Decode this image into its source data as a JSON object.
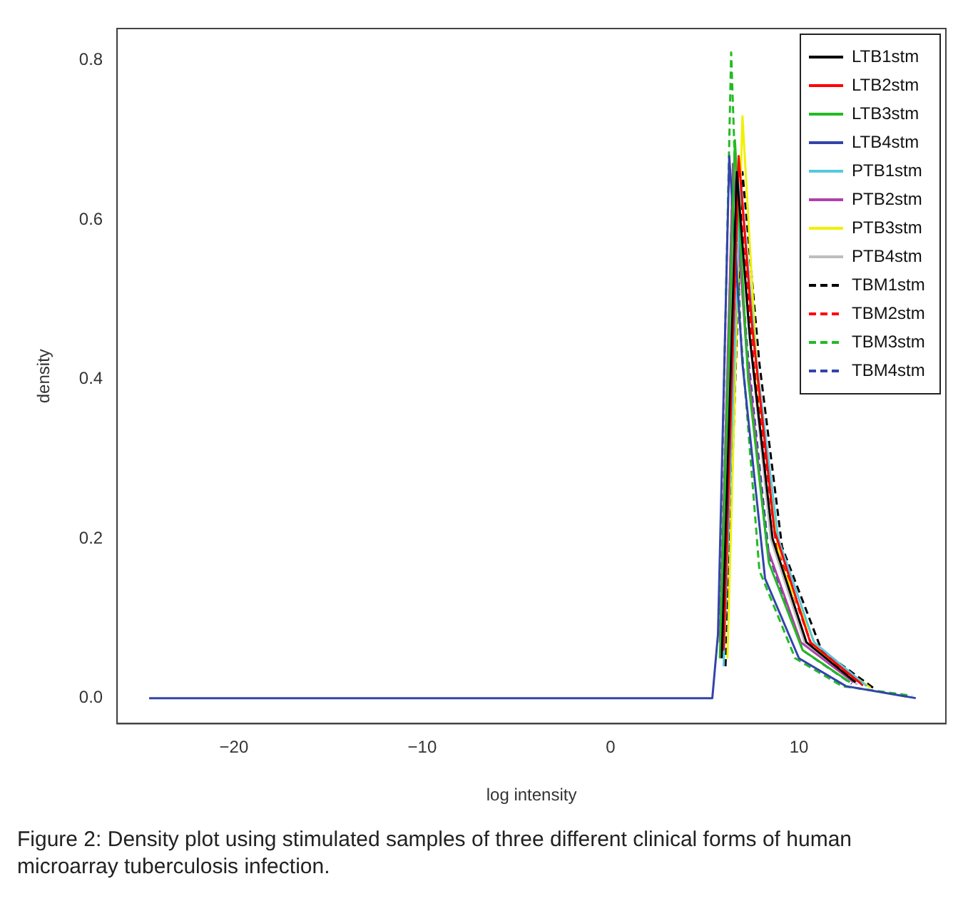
{
  "chart_data": {
    "type": "line",
    "xlabel": "log intensity",
    "ylabel": "density",
    "xlim": [
      -26.2,
      17.8
    ],
    "xticks": [
      -20,
      -10,
      0,
      10
    ],
    "ylim": [
      -0.032,
      0.84
    ],
    "yticks": [
      {
        "value": 0,
        "label": "0.0"
      },
      {
        "value": 0.2,
        "label": "0.2"
      },
      {
        "value": 0.4,
        "label": "0.4"
      },
      {
        "value": 0.6,
        "label": "0.6"
      },
      {
        "value": 0.8,
        "label": "0.8"
      }
    ],
    "grid": false,
    "legend": "top right",
    "marker": "none",
    "series": [
      {
        "name": "LTB1stm",
        "color": "#000000",
        "line_style": "solid",
        "x": [
          5.9,
          6.7,
          7.4,
          8.6,
          10.4,
          13.0
        ],
        "values": [
          0.05,
          0.66,
          0.45,
          0.2,
          0.07,
          0.02
        ]
      },
      {
        "name": "LTB2stm",
        "color": "#ff0000",
        "line_style": "solid",
        "x": [
          6.0,
          6.8,
          7.5,
          8.7,
          10.6,
          13.3
        ],
        "values": [
          0.06,
          0.68,
          0.47,
          0.21,
          0.07,
          0.018
        ]
      },
      {
        "name": "LTB3stm",
        "color": "#22bb22",
        "line_style": "solid",
        "x": [
          5.8,
          6.6,
          7.3,
          8.4,
          10.2,
          12.7
        ],
        "values": [
          0.05,
          0.7,
          0.4,
          0.17,
          0.06,
          0.02
        ]
      },
      {
        "name": "LTB4stm",
        "color": "#3344aa",
        "line_style": "solid",
        "x": [
          -24.5,
          5.4,
          5.7,
          6.3,
          7.0,
          8.2,
          10.0,
          12.5,
          16.2
        ],
        "values": [
          0,
          0,
          0.08,
          0.68,
          0.42,
          0.15,
          0.05,
          0.015,
          0
        ]
      },
      {
        "name": "PTB1stm",
        "color": "#55c8e0",
        "line_style": "solid",
        "x": [
          6.0,
          6.9,
          7.7,
          8.9,
          10.8,
          13.6
        ],
        "values": [
          0.04,
          0.65,
          0.43,
          0.2,
          0.07,
          0.015
        ]
      },
      {
        "name": "PTB2stm",
        "color": "#b040a8",
        "line_style": "solid",
        "x": [
          5.8,
          6.5,
          7.2,
          8.3,
          10.1,
          12.9
        ],
        "values": [
          0.07,
          0.67,
          0.44,
          0.19,
          0.07,
          0.02
        ]
      },
      {
        "name": "PTB3stm",
        "color": "#f0f000",
        "line_style": "solid",
        "x": [
          6.2,
          7.0,
          7.8,
          9.0,
          11.0,
          13.8
        ],
        "values": [
          0.05,
          0.73,
          0.4,
          0.17,
          0.06,
          0.013
        ]
      },
      {
        "name": "PTB4stm",
        "color": "#bebebe",
        "line_style": "solid",
        "x": [
          5.9,
          6.6,
          7.35,
          8.5,
          10.3,
          13.1
        ],
        "values": [
          0.06,
          0.68,
          0.46,
          0.2,
          0.07,
          0.017
        ]
      },
      {
        "name": "TBM1stm",
        "color": "#000000",
        "line_style": "dashed",
        "x": [
          6.1,
          7.0,
          7.9,
          9.1,
          11.2,
          14.0
        ],
        "values": [
          0.04,
          0.66,
          0.42,
          0.19,
          0.06,
          0.012
        ]
      },
      {
        "name": "TBM2stm",
        "color": "#ff0000",
        "line_style": "dashed",
        "x": [
          6.15,
          6.8,
          7.6,
          8.8,
          10.7,
          13.4
        ],
        "values": [
          0.1,
          0.64,
          0.42,
          0.19,
          0.065,
          0.016
        ]
      },
      {
        "name": "TBM3stm",
        "color": "#22bb22",
        "line_style": "dashed",
        "x": [
          5.75,
          6.4,
          6.9,
          7.9,
          9.8,
          12.3,
          16.0
        ],
        "values": [
          0.09,
          0.81,
          0.46,
          0.16,
          0.05,
          0.015,
          0.003
        ]
      },
      {
        "name": "TBM4stm",
        "color": "#3344aa",
        "line_style": "dashed",
        "x": [
          5.85,
          6.5,
          7.25,
          8.4,
          10.2,
          12.8
        ],
        "values": [
          0.06,
          0.67,
          0.44,
          0.18,
          0.06,
          0.018
        ]
      }
    ],
    "annotations": [
      "Figure 2: Density plot using stimulated samples of three different clinical forms of human microarray tuberculosis infection."
    ]
  }
}
